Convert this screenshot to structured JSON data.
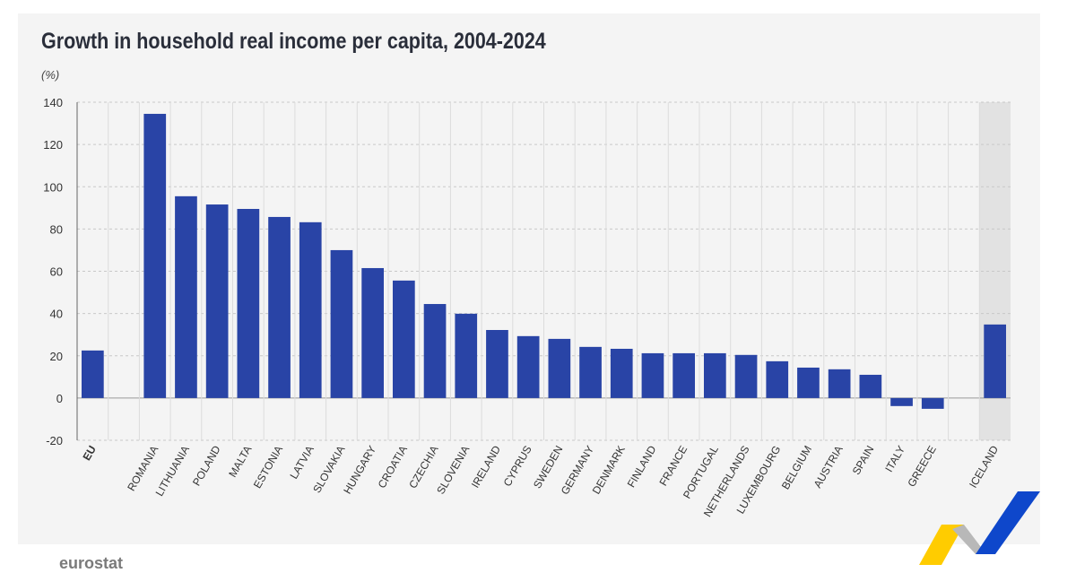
{
  "chart_data": {
    "type": "bar",
    "title": "Growth in household real income per capita, 2004-2024",
    "unit": "(%)",
    "ylim": [
      -20,
      140
    ],
    "yticks": [
      -20,
      0,
      20,
      40,
      60,
      80,
      100,
      120,
      140
    ],
    "grid": true,
    "bar_color": "#2944a6",
    "highlight_color": "#e2e2e2",
    "categories": [
      "EU",
      "",
      "ROMANIA",
      "LITHUANIA",
      "POLAND",
      "MALTA",
      "ESTONIA",
      "LATVIA",
      "SLOVAKIA",
      "HUNGARY",
      "CROATIA",
      "CZECHIA",
      "SLOVENIA",
      "IRELAND",
      "CYPRUS",
      "SWEDEN",
      "GERMANY",
      "DENMARK",
      "FINLAND",
      "FRANCE",
      "PORTUGAL",
      "NETHERLANDS",
      "LUXEMBOURG",
      "BELGIUM",
      "AUSTRIA",
      "SPAIN",
      "ITALY",
      "GREECE",
      "",
      "ICELAND"
    ],
    "values": [
      22.5,
      null,
      134.5,
      95.5,
      91.6,
      89.5,
      85.7,
      83.2,
      70.0,
      61.5,
      55.6,
      44.5,
      39.9,
      32.2,
      29.3,
      28.0,
      24.2,
      23.3,
      21.2,
      21.2,
      21.2,
      20.4,
      17.4,
      14.4,
      13.6,
      11.0,
      -3.8,
      -5.1,
      null,
      34.8
    ],
    "highlighted": [
      "ICELAND"
    ]
  },
  "footer": {
    "logo": "eurostat"
  }
}
